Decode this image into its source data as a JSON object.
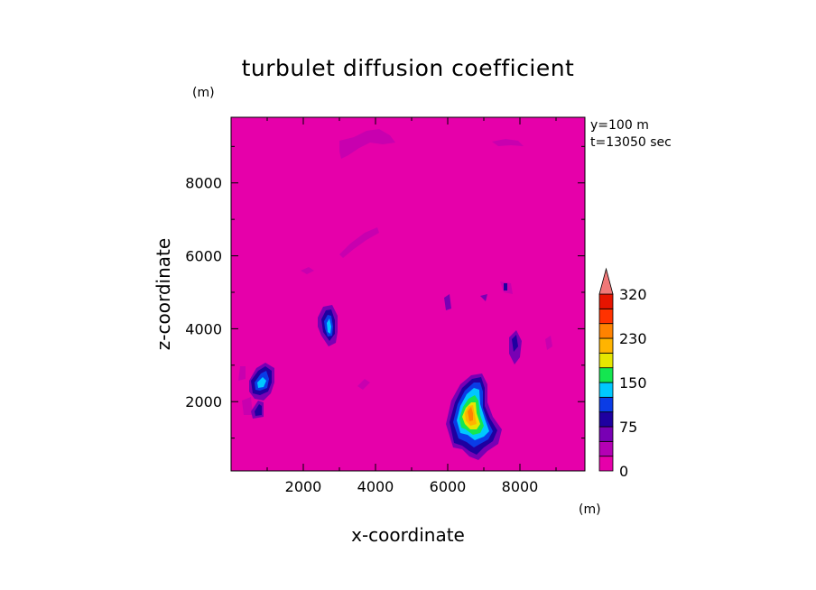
{
  "chart_data": {
    "type": "heatmap",
    "title": "turbulet diffusion coefficient",
    "xlabel": "x-coordinate",
    "ylabel": "z-coordinate",
    "x_unit": "(m)",
    "y_unit": "(m)",
    "annotations": [
      "y=100 m",
      "t=13050 sec"
    ],
    "xlim": [
      0,
      9800
    ],
    "ylim": [
      100,
      9800
    ],
    "x_ticks": [
      2000,
      4000,
      6000,
      8000
    ],
    "y_ticks": [
      2000,
      4000,
      6000,
      8000
    ],
    "x_tick_labels": [
      "2000",
      "4000",
      "6000",
      "8000"
    ],
    "y_tick_labels": [
      "2000",
      "4000",
      "6000",
      "8000"
    ],
    "background_color": "#E600AA",
    "colorbar": {
      "levels": [
        0,
        25,
        50,
        75,
        100,
        125,
        150,
        175,
        200,
        230,
        260,
        290,
        320
      ],
      "labels": [
        "0",
        "75",
        "150",
        "230",
        "320"
      ],
      "label_values": [
        0,
        75,
        150,
        230,
        320
      ],
      "colors": [
        "#E600AA",
        "#B400B4",
        "#7800B4",
        "#1E00A0",
        "#0A3CE6",
        "#00C8FF",
        "#14E650",
        "#E6E600",
        "#FFB400",
        "#FF8200",
        "#FF3200",
        "#E61400"
      ],
      "extend_color": "#F07878"
    },
    "features": [
      {
        "x": 6800,
        "z": 1600,
        "peak": 230
      },
      {
        "x": 950,
        "z": 2550,
        "peak": 150
      },
      {
        "x": 2800,
        "z": 4200,
        "peak": 150
      },
      {
        "x": 7900,
        "z": 3650,
        "peak": 75
      },
      {
        "x": 3950,
        "z": 9400,
        "peak": 25
      }
    ]
  }
}
